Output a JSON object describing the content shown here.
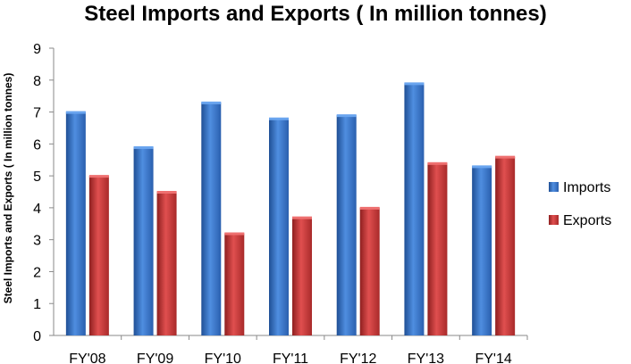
{
  "chart_data": {
    "type": "bar",
    "title": "Steel Imports and Exports ( In million tonnes)",
    "xlabel": "",
    "ylabel": "Steel Imports and Exports ( In million tonnes)",
    "categories": [
      "FY'08",
      "FY'09",
      "FY'10",
      "FY'11",
      "FY'12",
      "FY'13",
      "FY'14"
    ],
    "series": [
      {
        "name": "Imports",
        "values": [
          7.0,
          5.9,
          7.3,
          6.8,
          6.9,
          7.9,
          5.3
        ],
        "color": "#3a78c9"
      },
      {
        "name": "Exports",
        "values": [
          5.0,
          4.5,
          3.2,
          3.7,
          4.0,
          5.4,
          5.6
        ],
        "color": "#cc3a3a"
      }
    ],
    "ylim": [
      0,
      9
    ],
    "yticks": [
      "0",
      "1",
      "2",
      "3",
      "4",
      "5",
      "6",
      "7",
      "8",
      "9"
    ],
    "grid": false,
    "legend_position": "right"
  }
}
